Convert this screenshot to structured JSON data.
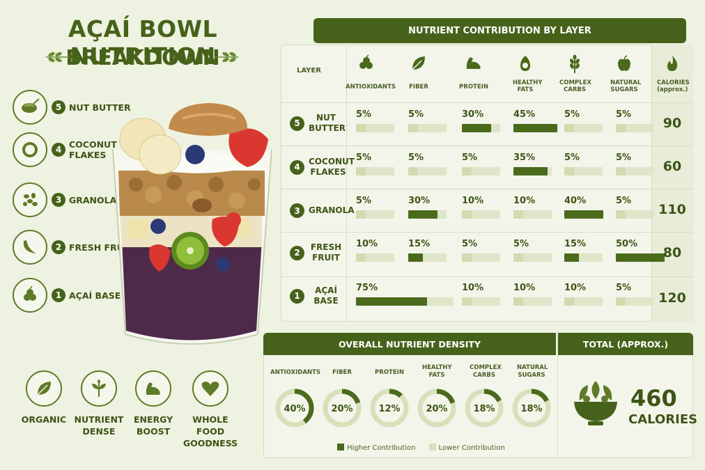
{
  "title": {
    "line1": "AÇAÍ BOWL NUTRITION",
    "line2": "BREAKDOWN"
  },
  "layers_legend": [
    {
      "num": "5",
      "label": "NUT BUTTER",
      "icon": "nut-butter-icon"
    },
    {
      "num": "4",
      "label": "COCONUT FLAKES",
      "icon": "coconut-icon"
    },
    {
      "num": "3",
      "label": "GRANOLA",
      "icon": "granola-icon"
    },
    {
      "num": "2",
      "label": "FRESH FRUIT",
      "icon": "banana-icon"
    },
    {
      "num": "1",
      "label": "AÇAÍ BASE",
      "icon": "acai-berries-icon"
    }
  ],
  "benefits": [
    {
      "label": "ORGANIC",
      "icon": "leaf-icon"
    },
    {
      "label": "NUTRIENT DENSE",
      "icon": "sprout-icon"
    },
    {
      "label": "ENERGY BOOST",
      "icon": "muscle-icon"
    },
    {
      "label": "WHOLE FOOD GOODNESS",
      "icon": "heart-icon"
    }
  ],
  "table": {
    "header": "NUTRIENT CONTRIBUTION BY LAYER",
    "layer_col": "LAYER",
    "nutrients": [
      {
        "label": "ANTIOXIDANTS",
        "icon": "berries-icon"
      },
      {
        "label": "FIBER",
        "icon": "leaf-icon"
      },
      {
        "label": "PROTEIN",
        "icon": "muscle-icon"
      },
      {
        "label": "HEALTHY FATS",
        "icon": "avocado-icon"
      },
      {
        "label": "COMPLEX CARBS",
        "icon": "wheat-icon"
      },
      {
        "label": "NATURAL SUGARS",
        "icon": "apple-icon"
      }
    ],
    "cal_col_label": "CALORIES (approx.)",
    "cal_icon": "flame-icon",
    "rows": [
      {
        "num": "5",
        "name": "NUT BUTTER",
        "pcts": [
          "5%",
          "5%",
          "30%",
          "45%",
          "5%",
          "5%"
        ],
        "values": [
          5,
          5,
          30,
          45,
          5,
          5
        ],
        "calories": "90"
      },
      {
        "num": "4",
        "name": "COCONUT FLAKES",
        "pcts": [
          "5%",
          "5%",
          "5%",
          "35%",
          "5%",
          "5%"
        ],
        "values": [
          5,
          5,
          5,
          35,
          5,
          5
        ],
        "calories": "60"
      },
      {
        "num": "3",
        "name": "GRANOLA",
        "pcts": [
          "5%",
          "30%",
          "10%",
          "10%",
          "40%",
          "5%"
        ],
        "values": [
          5,
          30,
          10,
          10,
          40,
          5
        ],
        "calories": "110"
      },
      {
        "num": "2",
        "name": "FRESH FRUIT",
        "pcts": [
          "10%",
          "15%",
          "5%",
          "5%",
          "15%",
          "50%"
        ],
        "values": [
          10,
          15,
          5,
          5,
          15,
          50
        ],
        "calories": "80"
      },
      {
        "num": "1",
        "name": "AÇAÍ BASE",
        "pcts": [
          "75%",
          "",
          "10%",
          "10%",
          "10%",
          "5%"
        ],
        "values": [
          75,
          0,
          10,
          10,
          10,
          5
        ],
        "calories": "120"
      }
    ]
  },
  "density": {
    "header": "OVERALL NUTRIENT DENSITY",
    "items": [
      {
        "label": "ANTIOXIDANTS",
        "value": 40,
        "text": "40%"
      },
      {
        "label": "FIBER",
        "value": 20,
        "text": "20%"
      },
      {
        "label": "PROTEIN",
        "value": 12,
        "text": "12%"
      },
      {
        "label": "HEALTHY FATS",
        "value": 20,
        "text": "20%"
      },
      {
        "label": "COMPLEX CARBS",
        "value": 18,
        "text": "18%"
      },
      {
        "label": "NATURAL SUGARS",
        "value": 18,
        "text": "18%"
      }
    ],
    "legend_high": "Higher Contribution",
    "legend_low": "Lower Contribution"
  },
  "total": {
    "header": "TOTAL (APPROX.)",
    "value": "460",
    "unit": "CALORIES",
    "icon": "salad-bowl-icon"
  },
  "colors": {
    "primary": "#46621a",
    "bar": "#4a6a1c",
    "track": "#dfe5c8",
    "background": "#eef2e0",
    "acai": "#4e2a4a"
  }
}
